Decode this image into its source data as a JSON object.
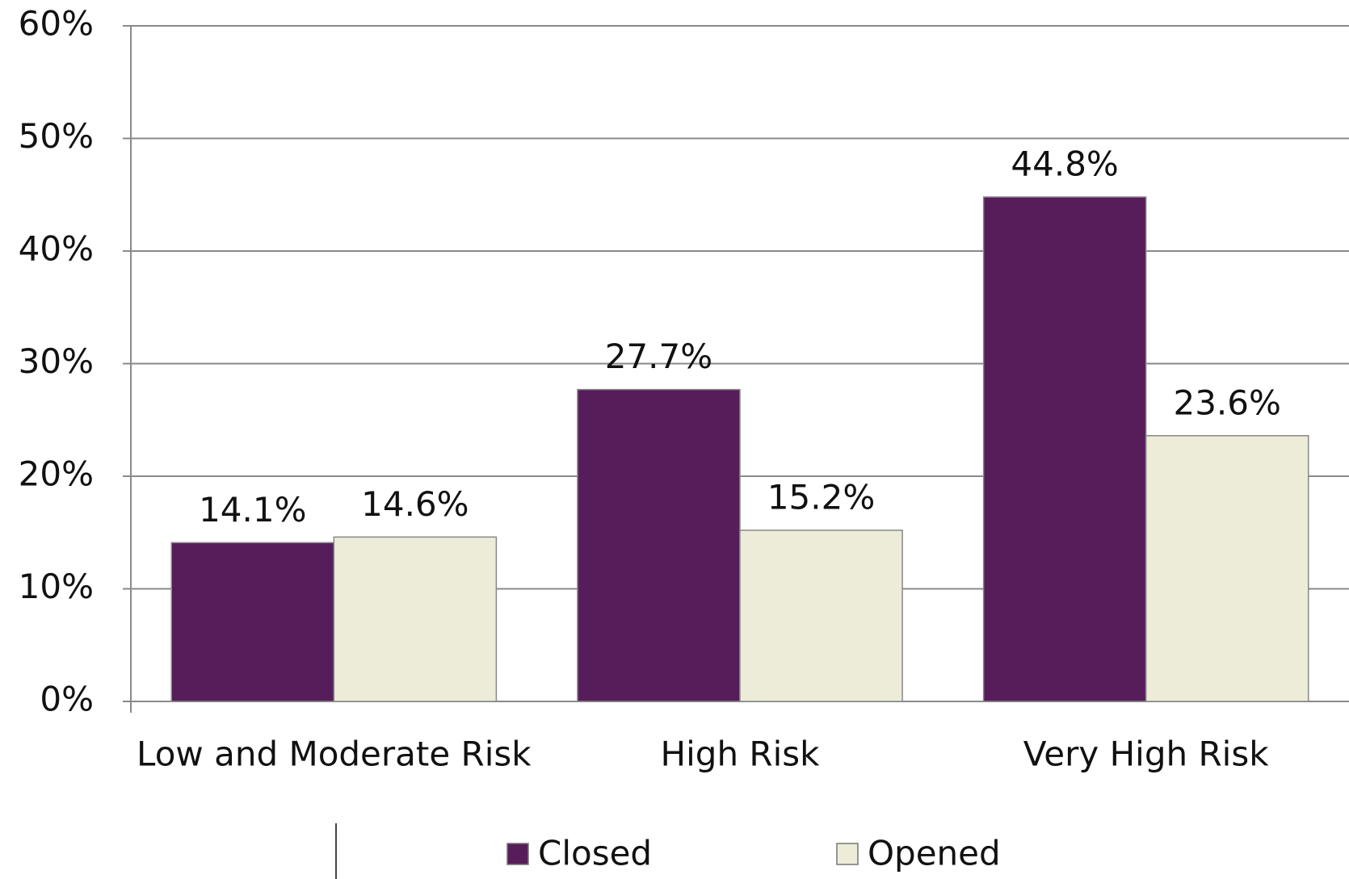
{
  "chart_data": {
    "type": "bar",
    "categories": [
      "Low and Moderate Risk",
      "High Risk",
      "Very High Risk"
    ],
    "series": [
      {
        "name": "Closed",
        "color": "#561d5a",
        "values": [
          14.1,
          27.7,
          44.8
        ],
        "value_labels": [
          "14.1%",
          "27.7%",
          "44.8%"
        ]
      },
      {
        "name": "Opened",
        "color": "#ececd9",
        "values": [
          14.6,
          15.2,
          23.6
        ],
        "value_labels": [
          "14.6%",
          "15.2%",
          "23.6%"
        ]
      }
    ],
    "ylim": [
      0,
      60
    ],
    "yticks": [
      {
        "value": 0,
        "label": "0%"
      },
      {
        "value": 10,
        "label": "10%"
      },
      {
        "value": 20,
        "label": "20%"
      },
      {
        "value": 30,
        "label": "30%"
      },
      {
        "value": 40,
        "label": "40%"
      },
      {
        "value": 50,
        "label": "50%"
      },
      {
        "value": 60,
        "label": "60%"
      }
    ],
    "grid": true
  }
}
